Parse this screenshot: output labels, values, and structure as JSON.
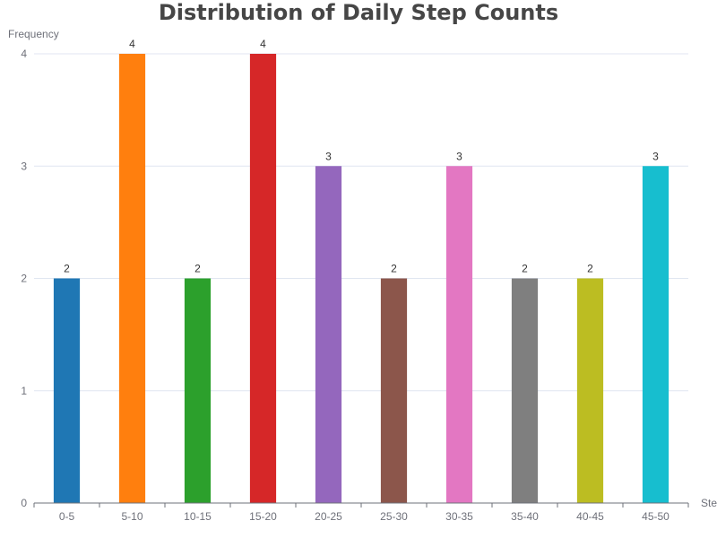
{
  "chart_data": {
    "type": "bar",
    "title": "Distribution of Daily Step Counts",
    "xlabel": "Steps",
    "ylabel": "Frequency",
    "categories": [
      "0-5",
      "5-10",
      "10-15",
      "15-20",
      "20-25",
      "25-30",
      "30-35",
      "35-40",
      "40-45",
      "45-50"
    ],
    "values": [
      2,
      4,
      2,
      4,
      3,
      2,
      3,
      2,
      2,
      3
    ],
    "colors": [
      "#1f77b4",
      "#ff7f0e",
      "#2ca02c",
      "#d62728",
      "#9467bd",
      "#8c564b",
      "#e377c2",
      "#7f7f7f",
      "#bcbd22",
      "#17becf"
    ],
    "ylim": [
      0,
      4
    ],
    "yticks": [
      0,
      1,
      2,
      3,
      4
    ],
    "grid": true,
    "data_labels": true
  }
}
